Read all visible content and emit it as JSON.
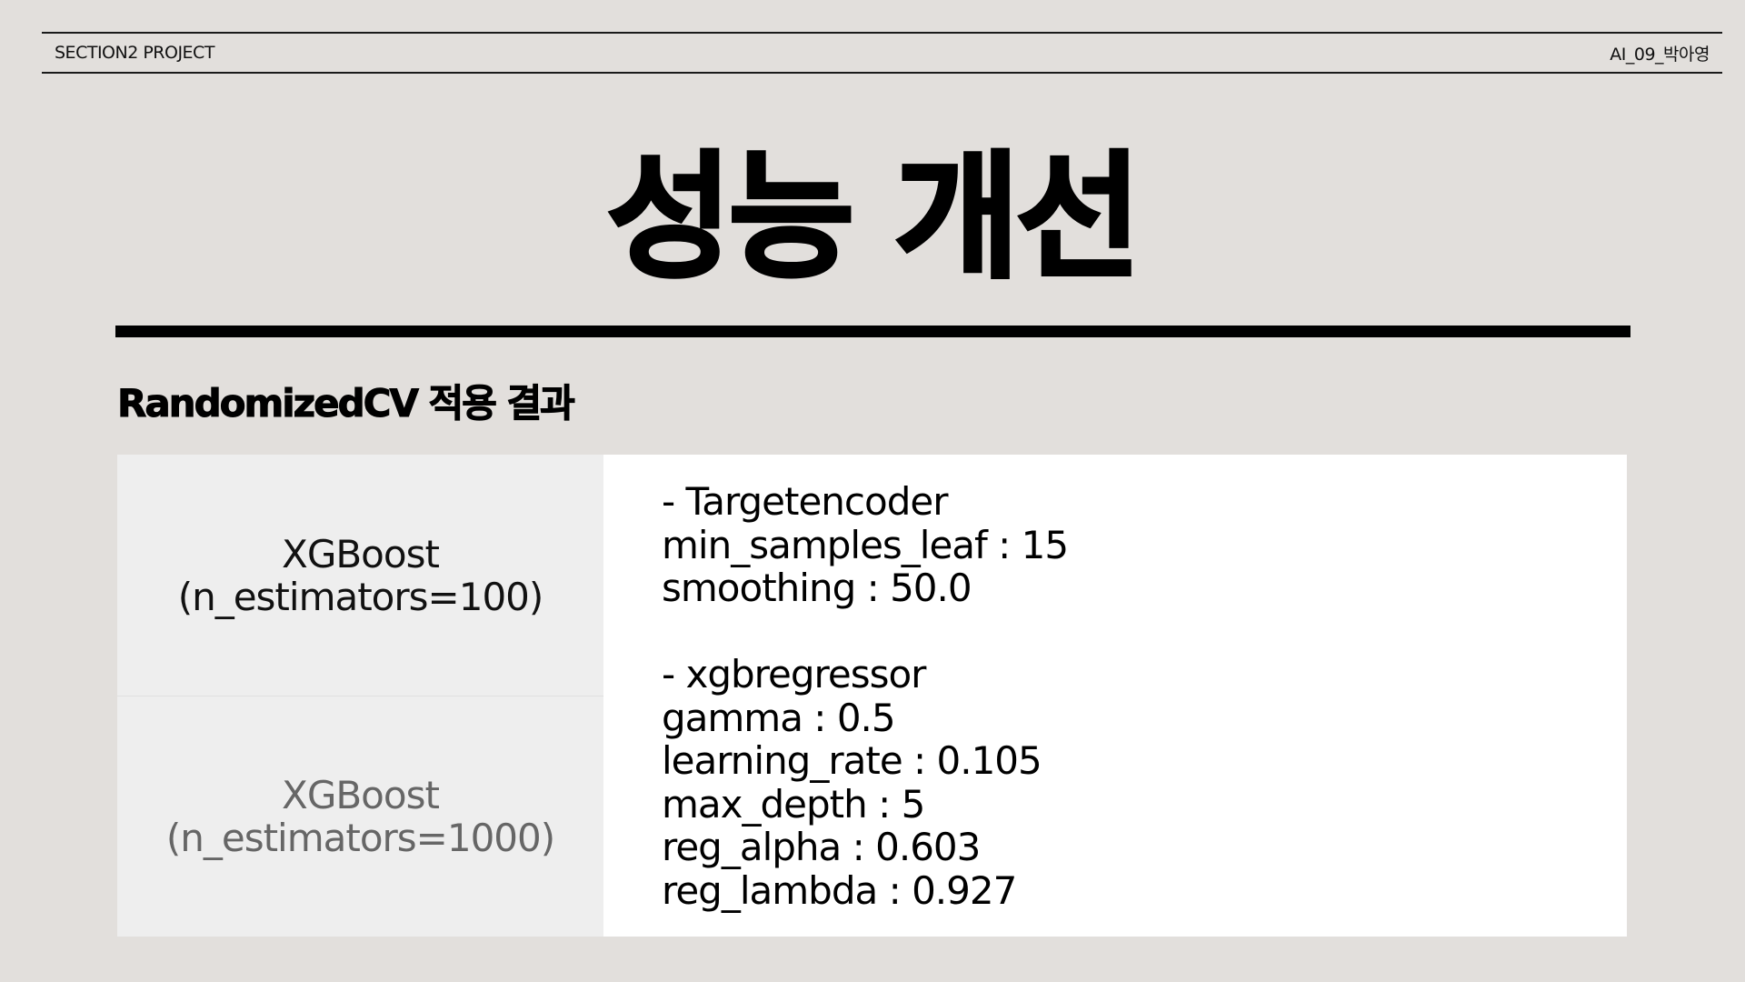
{
  "header": {
    "left": "SECTION2 PROJECT",
    "right": "AI_09_박아영"
  },
  "title": "성능 개선",
  "subtitle": "RandomizedCV 적용 결과",
  "models": [
    {
      "name": "XGBoost",
      "param": "(n_estimators=100)"
    },
    {
      "name": "XGBoost",
      "param": "(n_estimators=1000)"
    }
  ],
  "params": {
    "encoder": {
      "heading": "- Targetencoder",
      "lines": [
        "min_samples_leaf : 15",
        "smoothing : 50.0"
      ]
    },
    "regressor": {
      "heading": "- xgbregressor",
      "lines": [
        "gamma : 0.5",
        "learning_rate : 0.105",
        "max_depth : 5",
        "reg_alpha : 0.603",
        "reg_lambda : 0.927"
      ]
    }
  }
}
